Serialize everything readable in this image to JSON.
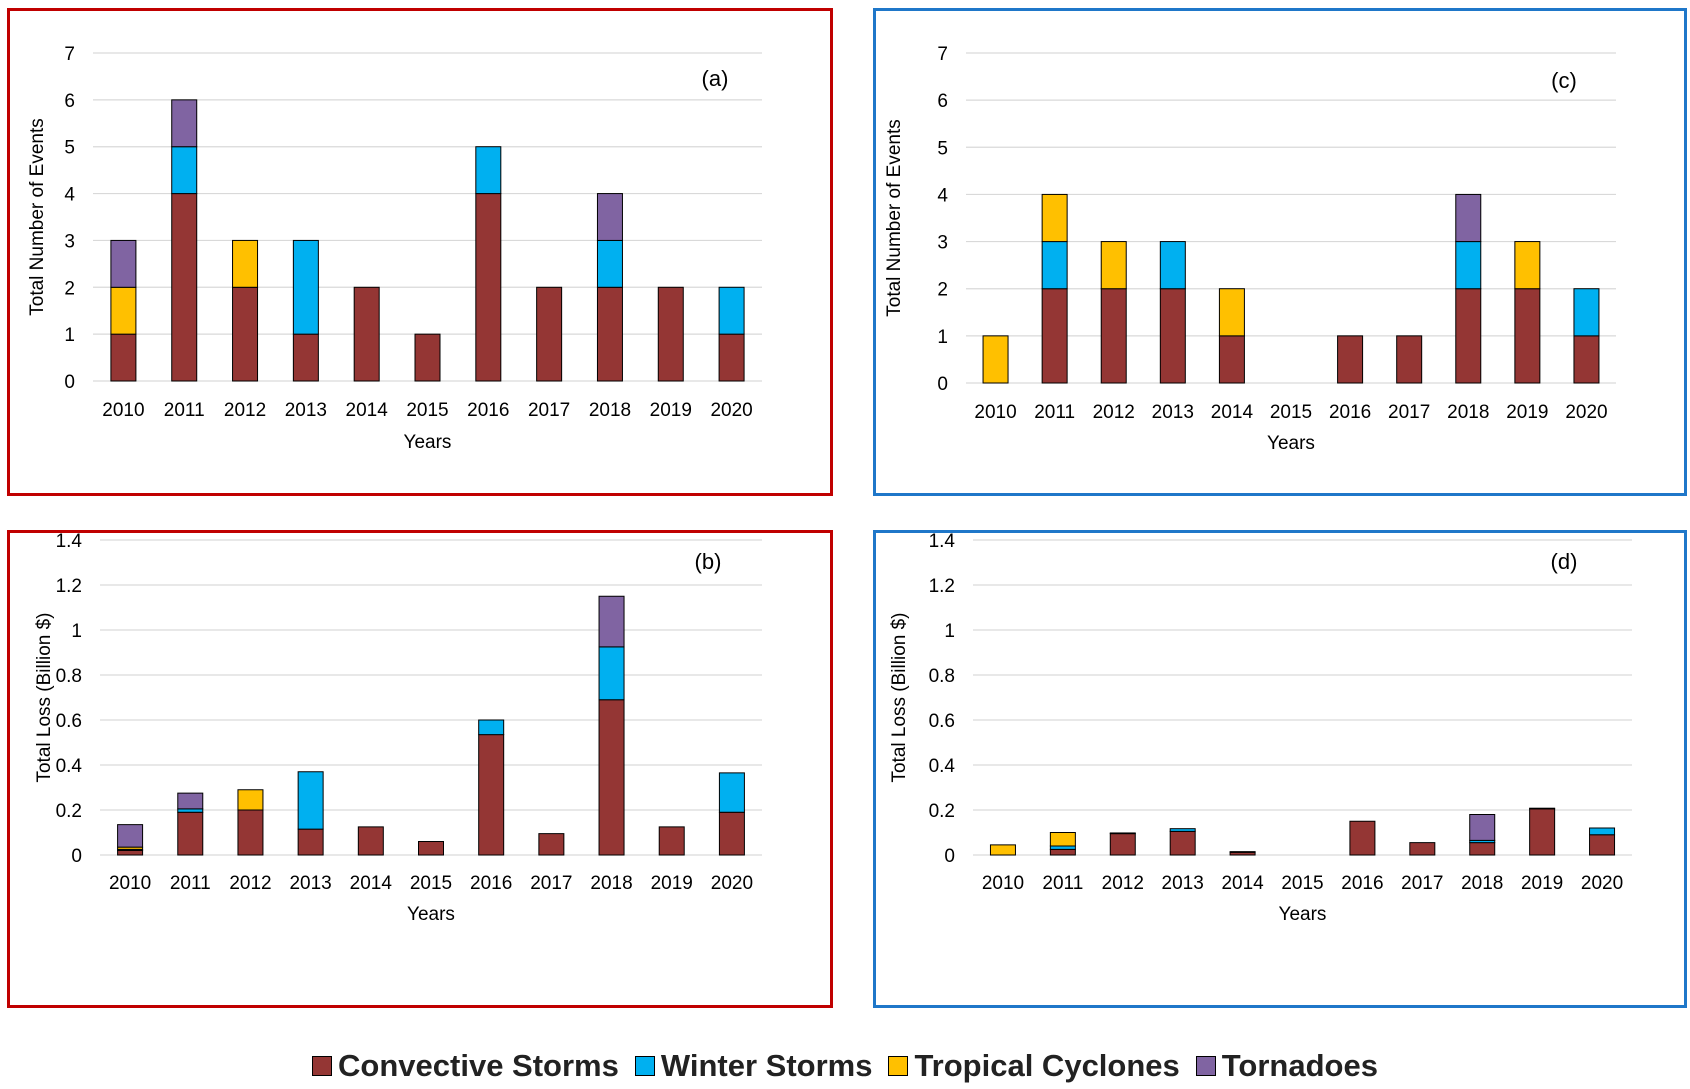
{
  "colors": {
    "convective": "#943634",
    "winter": "#00b0f0",
    "tropical": "#ffc000",
    "tornado": "#8064a2"
  },
  "legend": [
    {
      "key": "convective",
      "label": "Convective Storms"
    },
    {
      "key": "winter",
      "label": "Winter Storms"
    },
    {
      "key": "tropical",
      "label": "Tropical Cyclones"
    },
    {
      "key": "tornado",
      "label": "Tornadoes"
    }
  ],
  "chart_data": [
    {
      "id": "a",
      "panel_label": "(a)",
      "type": "bar",
      "stacked": true,
      "xlabel": "Years",
      "ylabel": "Total Number of Events",
      "ylim": [
        0,
        7
      ],
      "yticks": [
        "0",
        "1",
        "2",
        "3",
        "4",
        "5",
        "6",
        "7"
      ],
      "grid": true,
      "categories": [
        "2010",
        "2011",
        "2012",
        "2013",
        "2014",
        "2015",
        "2016",
        "2017",
        "2018",
        "2019",
        "2020"
      ],
      "series": [
        {
          "key": "convective",
          "name": "Convective Storms",
          "values": [
            1,
            4,
            2,
            1,
            2,
            1,
            4,
            2,
            2,
            2,
            1
          ]
        },
        {
          "key": "winter",
          "name": "Winter Storms",
          "values": [
            0,
            1,
            0,
            2,
            0,
            0,
            1,
            0,
            1,
            0,
            1
          ]
        },
        {
          "key": "tropical",
          "name": "Tropical Cyclones",
          "values": [
            1,
            0,
            1,
            0,
            0,
            0,
            0,
            0,
            0,
            0,
            0
          ]
        },
        {
          "key": "tornado",
          "name": "Tornadoes",
          "values": [
            1,
            1,
            0,
            0,
            0,
            0,
            0,
            0,
            1,
            0,
            0
          ]
        }
      ]
    },
    {
      "id": "c",
      "panel_label": "(c)",
      "type": "bar",
      "stacked": true,
      "xlabel": "Years",
      "ylabel": "Total Number of Events",
      "ylim": [
        0,
        7
      ],
      "yticks": [
        "0",
        "1",
        "2",
        "3",
        "4",
        "5",
        "6",
        "7"
      ],
      "grid": true,
      "categories": [
        "2010",
        "2011",
        "2012",
        "2013",
        "2014",
        "2015",
        "2016",
        "2017",
        "2018",
        "2019",
        "2020"
      ],
      "series": [
        {
          "key": "convective",
          "name": "Convective Storms",
          "values": [
            0,
            2,
            2,
            2,
            1,
            0,
            1,
            1,
            2,
            2,
            1
          ]
        },
        {
          "key": "winter",
          "name": "Winter Storms",
          "values": [
            0,
            1,
            0,
            1,
            0,
            0,
            0,
            0,
            1,
            0,
            1
          ]
        },
        {
          "key": "tropical",
          "name": "Tropical Cyclones",
          "values": [
            1,
            1,
            1,
            0,
            1,
            0,
            0,
            0,
            0,
            1,
            0
          ]
        },
        {
          "key": "tornado",
          "name": "Tornadoes",
          "values": [
            0,
            0,
            0,
            0,
            0,
            0,
            0,
            0,
            1,
            0,
            0
          ]
        }
      ]
    },
    {
      "id": "b",
      "panel_label": "(b)",
      "type": "bar",
      "stacked": true,
      "xlabel": "Years",
      "ylabel": "Total Loss (Billion $)",
      "ylim": [
        0,
        1.4
      ],
      "yticks": [
        "0",
        "0.2",
        "0.4",
        "0.6",
        "0.8",
        "1",
        "1.2",
        "1.4"
      ],
      "grid": true,
      "categories": [
        "2010",
        "2011",
        "2012",
        "2013",
        "2014",
        "2015",
        "2016",
        "2017",
        "2018",
        "2019",
        "2020"
      ],
      "series": [
        {
          "key": "convective",
          "name": "Convective Storms",
          "values": [
            0.02,
            0.19,
            0.2,
            0.115,
            0.125,
            0.06,
            0.535,
            0.095,
            0.69,
            0.125,
            0.19
          ]
        },
        {
          "key": "winter",
          "name": "Winter Storms",
          "values": [
            0.005,
            0.015,
            0,
            0.255,
            0,
            0,
            0.065,
            0,
            0.235,
            0,
            0.175
          ]
        },
        {
          "key": "tropical",
          "name": "Tropical Cyclones",
          "values": [
            0.01,
            0,
            0.09,
            0,
            0,
            0,
            0,
            0,
            0,
            0,
            0
          ]
        },
        {
          "key": "tornado",
          "name": "Tornadoes",
          "values": [
            0.1,
            0.07,
            0,
            0,
            0,
            0,
            0,
            0,
            0.225,
            0,
            0
          ]
        }
      ]
    },
    {
      "id": "d",
      "panel_label": "(d)",
      "type": "bar",
      "stacked": true,
      "xlabel": "Years",
      "ylabel": "Total Loss (Billion $)",
      "ylim": [
        0,
        1.4
      ],
      "yticks": [
        "0",
        "0.2",
        "0.4",
        "0.6",
        "0.8",
        "1",
        "1.2",
        "1.4"
      ],
      "grid": true,
      "categories": [
        "2010",
        "2011",
        "2012",
        "2013",
        "2014",
        "2015",
        "2016",
        "2017",
        "2018",
        "2019",
        "2020"
      ],
      "series": [
        {
          "key": "convective",
          "name": "Convective Storms",
          "values": [
            0,
            0.025,
            0.095,
            0.105,
            0.012,
            0,
            0.15,
            0.055,
            0.055,
            0.205,
            0.09
          ]
        },
        {
          "key": "winter",
          "name": "Winter Storms",
          "values": [
            0,
            0.015,
            0.003,
            0.012,
            0.003,
            0,
            0,
            0,
            0.01,
            0.003,
            0.03
          ]
        },
        {
          "key": "tropical",
          "name": "Tropical Cyclones",
          "values": [
            0.045,
            0.06,
            0,
            0,
            0,
            0,
            0,
            0,
            0,
            0,
            0
          ]
        },
        {
          "key": "tornado",
          "name": "Tornadoes",
          "values": [
            0,
            0,
            0,
            0,
            0,
            0,
            0,
            0,
            0.115,
            0,
            0
          ]
        }
      ]
    }
  ]
}
